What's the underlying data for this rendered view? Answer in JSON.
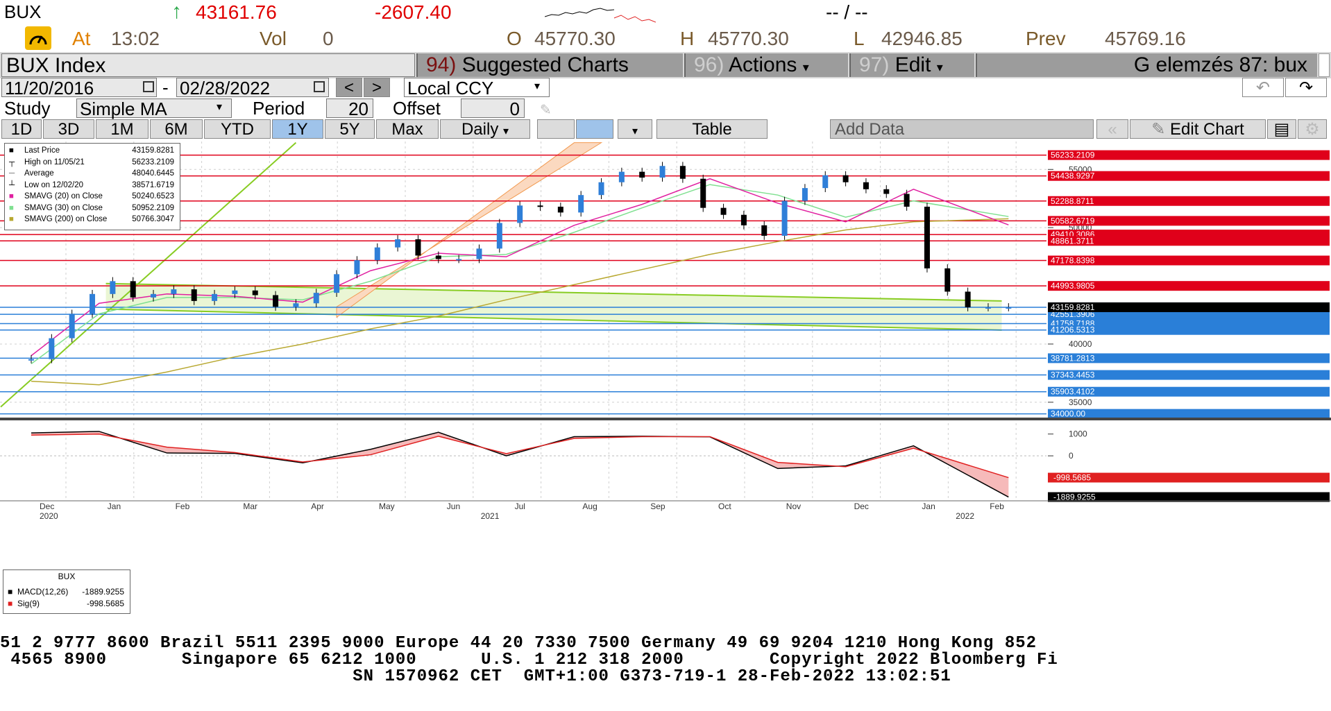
{
  "quote": {
    "ticker": "BUX",
    "last": "43161.76",
    "change": "-2607.40",
    "dash": "-- / --",
    "at_label": "At",
    "at_time": "13:02",
    "vol_label": "Vol",
    "vol_value": "0",
    "open_label": "O",
    "open_value": "45770.30",
    "high_label": "H",
    "high_value": "45770.30",
    "low_label": "L",
    "low_value": "42946.85",
    "prev_label": "Prev",
    "prev_value": "45769.16",
    "up_arrow": "↑"
  },
  "toolbar": {
    "title": "BUX Index",
    "suggested_num": "94)",
    "suggested_label": "Suggested Charts",
    "actions_num": "96)",
    "actions_label": "Actions",
    "edit_num": "97)",
    "edit_label": "Edit",
    "right_caption": "G elemzés 87: bux",
    "dropdown_glyph": "▾"
  },
  "dates": {
    "start": "11/20/2016",
    "sep": "-",
    "end": "02/28/2022",
    "prev_glyph": "<",
    "next_glyph": ">",
    "currency": "Local CCY",
    "undo_glyph": "↶",
    "redo_glyph": "↷"
  },
  "study": {
    "label": "Study",
    "type": "Simple MA",
    "period_label": "Period",
    "period_value": "20",
    "offset_label": "Offset",
    "offset_value": "0"
  },
  "ranges": {
    "buttons": [
      "1D",
      "3D",
      "1M",
      "6M",
      "YTD",
      "1Y",
      "5Y",
      "Max"
    ],
    "selected": "1Y",
    "frequency": "Daily",
    "table_label": "Table",
    "add_data_label": "Add Data",
    "edit_chart_label": "Edit Chart"
  },
  "legend": {
    "items": [
      {
        "label": "Last Price",
        "value": "43159.8281"
      },
      {
        "label": "High on 11/05/21",
        "value": "56233.2109"
      },
      {
        "label": "Average",
        "value": "48040.6445"
      },
      {
        "label": "Low on 12/02/20",
        "value": "38571.6719"
      },
      {
        "label": "SMAVG (20)  on Close",
        "value": "50240.6523"
      },
      {
        "label": "SMAVG (30)  on Close",
        "value": "50952.2109"
      },
      {
        "label": "SMAVG (200)  on Close",
        "value": "50766.3047"
      }
    ]
  },
  "macd_legend": {
    "title": "BUX",
    "items": [
      {
        "label": "MACD(12,26)",
        "value": "-1889.9255"
      },
      {
        "label": "Sig(9)",
        "value": "-998.5685"
      }
    ]
  },
  "chart_data": {
    "type": "line",
    "price_axis": {
      "ylim": [
        33800,
        57400
      ],
      "ticks": [
        35000,
        40000,
        45000,
        50000,
        55000
      ],
      "tick_labels": [
        "35000",
        "40000",
        "45000",
        "50000",
        "55000"
      ]
    },
    "macd_axis": {
      "ylim": [
        -2000,
        1500
      ],
      "ticks": [
        0,
        1000
      ],
      "tick_labels": [
        "0",
        "1000"
      ]
    },
    "x_months": [
      "Dec",
      "Jan",
      "Feb",
      "Mar",
      "Apr",
      "May",
      "Jun",
      "Jul",
      "Aug",
      "Sep",
      "Oct",
      "Nov",
      "Dec",
      "Jan",
      "Feb"
    ],
    "x_years": [
      {
        "label": "2020",
        "at_month": 0
      },
      {
        "label": "2021",
        "at_month": 6.5
      },
      {
        "label": "2022",
        "at_month": 13.5
      }
    ],
    "series": [
      {
        "key": "close",
        "x": [
          0,
          0.3,
          0.6,
          0.9,
          1.2,
          1.5,
          1.8,
          2.1,
          2.4,
          2.7,
          3.0,
          3.3,
          3.6,
          3.9,
          4.2,
          4.5,
          4.8,
          5.1,
          5.4,
          5.7,
          6.0,
          6.3,
          6.6,
          6.9,
          7.2,
          7.5,
          7.8,
          8.1,
          8.4,
          8.7,
          9.0,
          9.3,
          9.6,
          9.9,
          10.2,
          10.5,
          10.8,
          11.1,
          11.4,
          11.7,
          12.0,
          12.3,
          12.6,
          12.9,
          13.2,
          13.5,
          13.8,
          14.1,
          14.4
        ],
        "y": [
          38700,
          40500,
          42600,
          44300,
          45400,
          44000,
          44300,
          44700,
          43700,
          44300,
          44600,
          44200,
          43200,
          43500,
          44400,
          46000,
          47200,
          48300,
          49000,
          47600,
          47300,
          47300,
          48200,
          50400,
          51900,
          51800,
          51300,
          52800,
          53900,
          54800,
          54300,
          55300,
          54200,
          51700,
          51100,
          50200,
          49300,
          52300,
          53400,
          54500,
          53900,
          53300,
          52900,
          51800,
          46500,
          44500,
          43160,
          43160,
          43160
        ]
      },
      {
        "key": "sma20",
        "name": "SMAVG (20)",
        "x": [
          0,
          1,
          2,
          3,
          4,
          5,
          6,
          7,
          8,
          9,
          10,
          11,
          12,
          13,
          14.4
        ],
        "y": [
          39000,
          43500,
          44300,
          44100,
          43600,
          46300,
          47800,
          47500,
          50200,
          52000,
          54200,
          52100,
          50500,
          53300,
          50240
        ]
      },
      {
        "key": "sma30",
        "name": "SMAVG (30)",
        "x": [
          0,
          1,
          2,
          3,
          4,
          5,
          6,
          7,
          8,
          9,
          10,
          11,
          12,
          13,
          14.4
        ],
        "y": [
          38300,
          42600,
          44000,
          44000,
          43800,
          45400,
          47500,
          47700,
          49600,
          51700,
          53700,
          52800,
          50900,
          52300,
          50952
        ]
      },
      {
        "key": "sma200",
        "name": "SMAVG (200)",
        "x": [
          0,
          1,
          2,
          3,
          4,
          5,
          6,
          7,
          8,
          9,
          10,
          11,
          12,
          13,
          14.4
        ],
        "y": [
          36800,
          36500,
          37600,
          38900,
          40000,
          41300,
          42400,
          43800,
          45100,
          46400,
          47700,
          48800,
          49800,
          50500,
          50766
        ]
      },
      {
        "key": "macd",
        "name": "MACD(12,26)",
        "x": [
          0,
          1,
          2,
          3,
          4,
          5,
          6,
          7,
          8,
          9,
          10,
          11,
          12,
          13,
          14.4
        ],
        "y": [
          1050,
          1120,
          130,
          110,
          -320,
          300,
          1080,
          0,
          880,
          900,
          870,
          -580,
          -460,
          460,
          -1890
        ]
      },
      {
        "key": "signal",
        "name": "Sig(9)",
        "x": [
          0,
          1,
          2,
          3,
          4,
          5,
          6,
          7,
          8,
          9,
          10,
          11,
          12,
          13,
          14.4
        ],
        "y": [
          950,
          1000,
          400,
          150,
          -280,
          50,
          900,
          100,
          800,
          880,
          880,
          -300,
          -500,
          350,
          -999
        ]
      }
    ],
    "horizontal_levels": {
      "red": [
        "56233.2109",
        "54438.9297",
        "52288.8711",
        "50582.6719",
        "49410.3086",
        "48861.3711",
        "47178.8398",
        "44993.9805"
      ],
      "blue": [
        "43159.8281",
        "42551.3906",
        "41758.7188",
        "41206.5313",
        "38781.2813",
        "37343.4453",
        "35903.4102",
        "34000.00"
      ],
      "last_price_tag": "43159.8281"
    },
    "macd_tags": [
      "-998.5685",
      "-1889.9255"
    ],
    "grid": true,
    "legend_position": "top-left"
  },
  "footer": {
    "line1": "51 2 9777 8600 Brazil 5511 2395 9000 Europe 44 20 7330 7500 Germany 49 69 9204 1210 Hong Kong 852",
    "line2": " 4565 8900       Singapore 65 6212 1000      U.S. 1 212 318 2000        Copyright 2022 Bloomberg Fi",
    "line3": "                                 SN 1570962 CET  GMT+1:00 G373-719-1 28-Feb-2022 13:02:51"
  },
  "colors": {
    "price_up": "#2f7fd8",
    "price_candle": "#000000",
    "sma20": "#e020a0",
    "sma30": "#7fe090",
    "sma200": "#b8a830",
    "red_level": "#e0001a",
    "blue_level": "#2a7fd8",
    "channel_green": "#88cc22",
    "channel_orange": "#f29a50",
    "macd_line": "#000000",
    "signal_line": "#e02020"
  }
}
